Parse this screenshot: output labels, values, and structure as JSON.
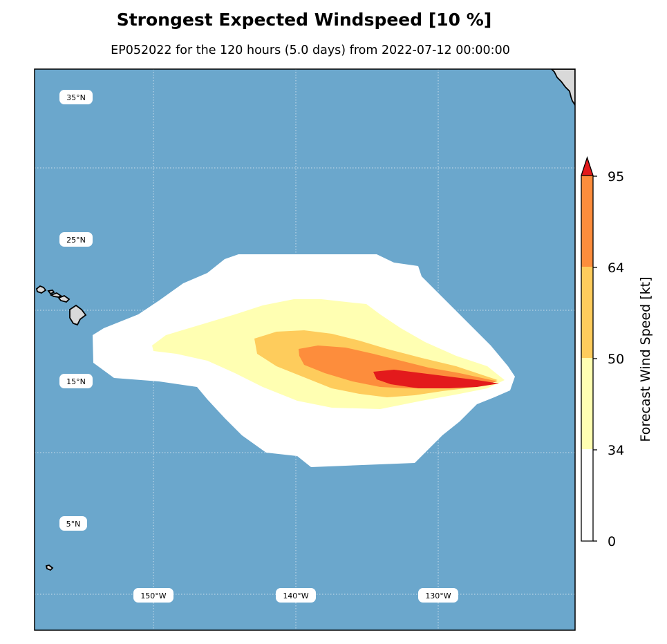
{
  "title": "Strongest Expected Windspeed [10 %]",
  "subtitle": "EP052022 for the 120 hours (5.0 days) from 2022-07-12 00:00:00",
  "map": {
    "ocean_color": "#6ba7cc",
    "land_color": "#d9d9d9",
    "lat_labels": [
      "35°N",
      "25°N",
      "15°N",
      "5°N"
    ],
    "lon_labels": [
      "150°W",
      "140°W",
      "130°W"
    ]
  },
  "legend": {
    "label": "Forecast Wind Speed [kt]",
    "ticks": [
      "0",
      "34",
      "50",
      "64",
      "95"
    ],
    "bands": [
      {
        "from": 0,
        "to": 34,
        "color": "#ffffff"
      },
      {
        "from": 34,
        "to": 50,
        "color": "#ffffb2"
      },
      {
        "from": 50,
        "to": 64,
        "color": "#fecc5c"
      },
      {
        "from": 64,
        "to": 95,
        "color": "#fd8d3c"
      },
      {
        "from": 95,
        "to": null,
        "color": "#e31a1c"
      }
    ]
  }
}
